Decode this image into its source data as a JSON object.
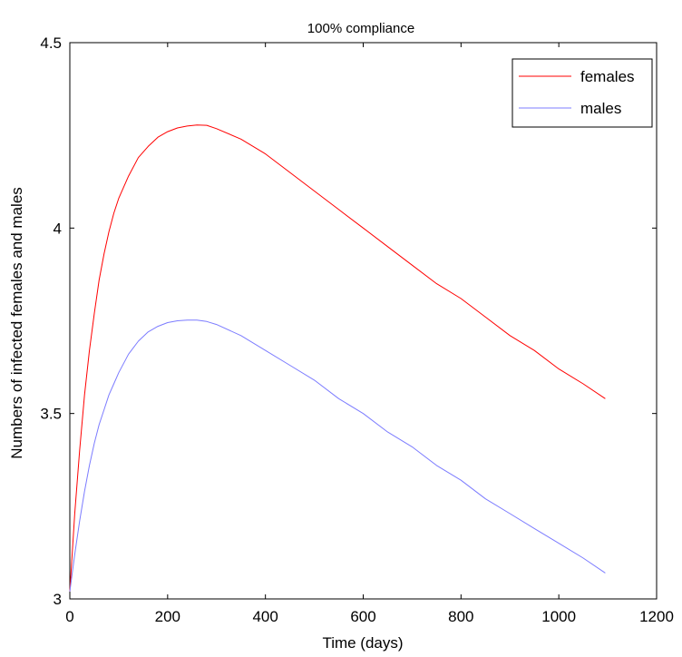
{
  "chart_data": {
    "type": "line",
    "title": "100% compliance",
    "xlabel": "Time (days)",
    "ylabel": "Numbers of infected females and males",
    "xlim": [
      0,
      1200
    ],
    "ylim": [
      3,
      4.5
    ],
    "xticks": [
      0,
      200,
      400,
      600,
      800,
      1000,
      1200
    ],
    "xtick_labels": [
      "0",
      "200",
      "400",
      "600",
      "800",
      "1000",
      "1200"
    ],
    "yticks": [
      3,
      3.5,
      4,
      4.5
    ],
    "ytick_labels": [
      "3",
      "3.5",
      "4",
      "4.5"
    ],
    "grid": false,
    "legend_position": "top-right",
    "series": [
      {
        "name": "females",
        "color": "#ff0000",
        "x": [
          0,
          10,
          20,
          30,
          40,
          50,
          60,
          70,
          80,
          90,
          100,
          120,
          140,
          160,
          180,
          200,
          220,
          240,
          260,
          280,
          300,
          350,
          400,
          450,
          500,
          550,
          600,
          650,
          700,
          750,
          800,
          850,
          900,
          950,
          1000,
          1050,
          1095
        ],
        "y": [
          3.02,
          3.23,
          3.4,
          3.55,
          3.67,
          3.77,
          3.86,
          3.93,
          3.99,
          4.04,
          4.08,
          4.14,
          4.19,
          4.22,
          4.245,
          4.26,
          4.27,
          4.275,
          4.278,
          4.277,
          4.268,
          4.24,
          4.2,
          4.15,
          4.1,
          4.05,
          4.0,
          3.95,
          3.9,
          3.85,
          3.81,
          3.76,
          3.71,
          3.67,
          3.62,
          3.58,
          3.54
        ]
      },
      {
        "name": "males",
        "color": "#7c7cff",
        "x": [
          0,
          10,
          20,
          30,
          40,
          50,
          60,
          70,
          80,
          90,
          100,
          120,
          140,
          160,
          180,
          200,
          220,
          240,
          260,
          280,
          300,
          350,
          400,
          450,
          500,
          550,
          600,
          650,
          700,
          750,
          800,
          850,
          900,
          950,
          1000,
          1050,
          1095
        ],
        "y": [
          3.02,
          3.12,
          3.21,
          3.29,
          3.36,
          3.42,
          3.47,
          3.51,
          3.55,
          3.58,
          3.61,
          3.66,
          3.695,
          3.72,
          3.735,
          3.745,
          3.75,
          3.752,
          3.752,
          3.748,
          3.74,
          3.71,
          3.67,
          3.63,
          3.59,
          3.54,
          3.5,
          3.45,
          3.41,
          3.36,
          3.32,
          3.27,
          3.23,
          3.19,
          3.15,
          3.11,
          3.07
        ]
      }
    ]
  }
}
